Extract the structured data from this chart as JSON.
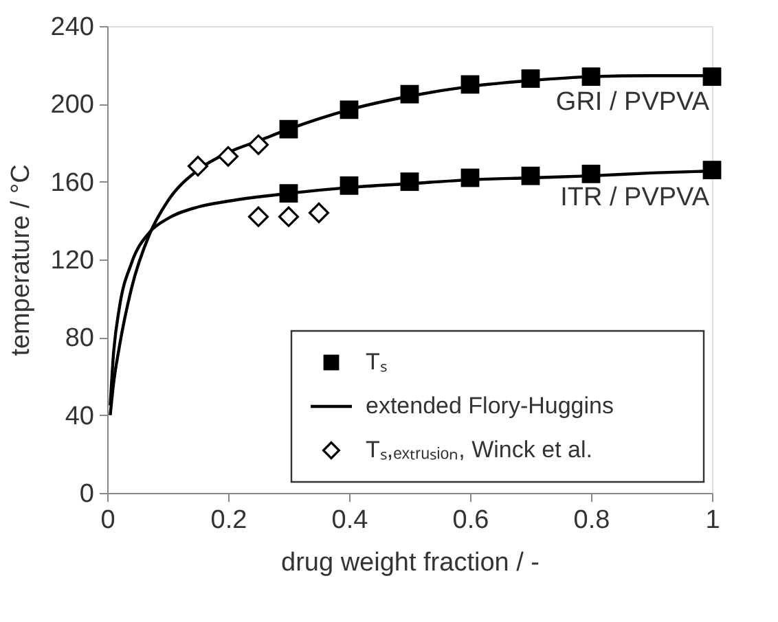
{
  "chart_data": {
    "type": "scatter",
    "xlabel": "drug weight fraction / -",
    "ylabel": "temperature / °C",
    "xlim": [
      0,
      1
    ],
    "xticks": [
      0,
      0.2,
      0.4,
      0.6,
      0.8,
      1
    ],
    "ylim": [
      0,
      240
    ],
    "yticks": [
      0,
      40,
      80,
      120,
      160,
      200,
      240
    ],
    "grid": false,
    "legend": "bottom right",
    "series": [
      {
        "name": "Tₛ",
        "marker": "square",
        "color": "#000000",
        "x": [
          0.3,
          0.4,
          0.5,
          0.6,
          0.7,
          0.8,
          1.0
        ],
        "values": [
          187,
          197,
          205,
          210,
          213,
          214,
          214
        ]
      },
      {
        "marker": "square",
        "color": "#000000",
        "x": [
          0.3,
          0.4,
          0.5,
          0.6,
          0.7,
          0.8,
          1.0
        ],
        "values": [
          154,
          158,
          160,
          162,
          163,
          164,
          166
        ]
      },
      {
        "name": "extended Flory-Huggins",
        "type": "line",
        "line_style": "solid",
        "color": "#000000",
        "x": [
          0.005,
          0.01,
          0.02,
          0.04,
          0.07,
          0.1,
          0.15,
          0.2,
          0.25,
          0.3,
          0.4,
          0.5,
          0.6,
          0.7,
          0.8,
          0.9,
          1.0
        ],
        "values": [
          40,
          55,
          75,
          105,
          133,
          150,
          166,
          175,
          181,
          187,
          197,
          204,
          209,
          212,
          214,
          214.5,
          214.5
        ]
      },
      {
        "type": "line",
        "line_style": "solid",
        "color": "#000000",
        "x": [
          0.005,
          0.01,
          0.02,
          0.04,
          0.07,
          0.1,
          0.15,
          0.2,
          0.3,
          0.4,
          0.5,
          0.6,
          0.7,
          0.8,
          0.9,
          1.0
        ],
        "values": [
          45,
          70,
          95,
          118,
          134,
          141,
          147,
          150,
          154,
          157,
          159,
          161,
          162,
          163,
          164.5,
          165.5
        ]
      },
      {
        "name": "Tₛ,ₑₓₜᵣᵤₛᵢₒₙ, Winck et al.",
        "marker": "diamond",
        "color": "#000000",
        "x": [
          0.15,
          0.2,
          0.25
        ],
        "values": [
          168,
          173,
          179
        ]
      },
      {
        "marker": "diamond",
        "color": "#000000",
        "x": [
          0.25,
          0.3,
          0.35
        ],
        "values": [
          142,
          142,
          144
        ]
      }
    ],
    "annotations": [
      "GRI / PVPVA",
      "ITR / PVPVA"
    ]
  }
}
